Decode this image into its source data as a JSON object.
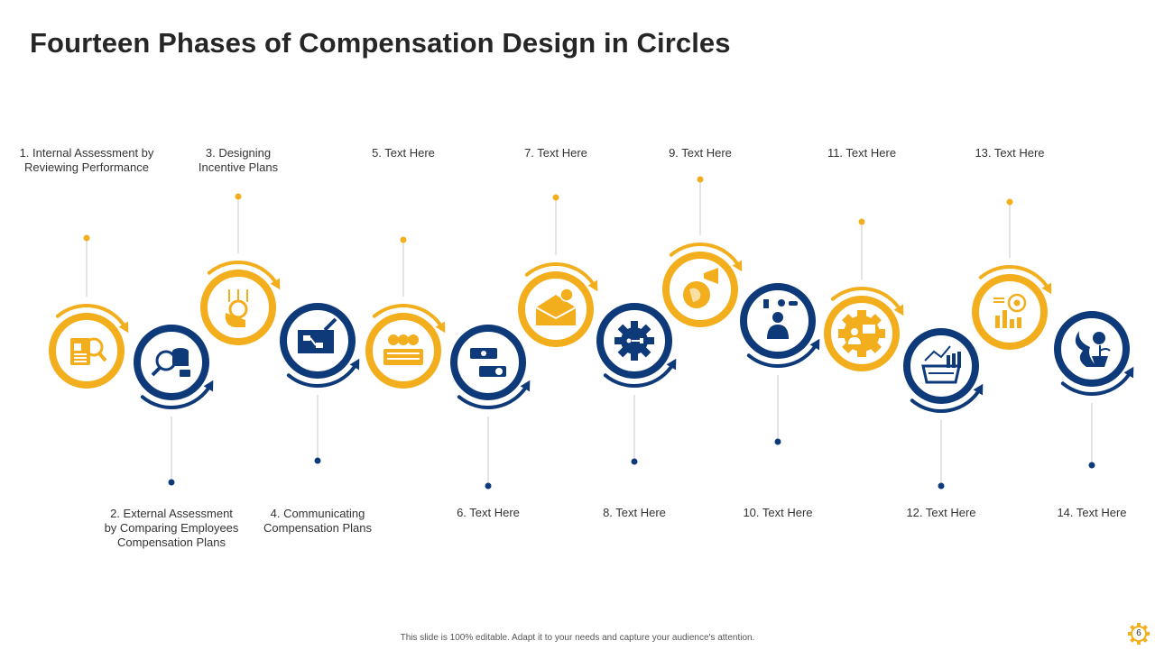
{
  "title": "Fourteen Phases of Compensation Design in Circles",
  "colors": {
    "yellow": "#F2AE1C",
    "blue": "#0E3A7A",
    "text": "#333333"
  },
  "phases": [
    {
      "label": "1. Internal Assessment  by Reviewing  Performance",
      "color": "yellow",
      "icon": "report-search-icon"
    },
    {
      "label": "2. External Assessment by Comparing Employees Compensation Plans",
      "color": "blue",
      "icon": "database-search-icon"
    },
    {
      "label": "3. Designing Incentive Plans",
      "color": "yellow",
      "icon": "hand-coin-growth-icon"
    },
    {
      "label": "4. Communicating Compensation Plans",
      "color": "blue",
      "icon": "flowchart-pencil-icon"
    },
    {
      "label": "5. Text Here",
      "color": "yellow",
      "icon": "money-stack-icon"
    },
    {
      "label": "6. Text Here",
      "color": "blue",
      "icon": "payment-hands-icon"
    },
    {
      "label": "7. Text Here",
      "color": "yellow",
      "icon": "envelope-money-icon"
    },
    {
      "label": "8. Text Here",
      "color": "blue",
      "icon": "gear-icon"
    },
    {
      "label": "9. Text Here",
      "color": "yellow",
      "icon": "globe-megaphone-icon"
    },
    {
      "label": "10. Text Here",
      "color": "blue",
      "icon": "person-ideas-icon"
    },
    {
      "label": "11. Text Here",
      "color": "yellow",
      "icon": "gear-presentation-icon"
    },
    {
      "label": "12. Text Here",
      "color": "blue",
      "icon": "basket-chart-icon"
    },
    {
      "label": "13. Text Here",
      "color": "yellow",
      "icon": "target-chart-icon"
    },
    {
      "label": "14. Text Here",
      "color": "blue",
      "icon": "plant-money-icon"
    }
  ],
  "footer": "This slide is 100% editable. Adapt it to your needs and capture your audience's attention.",
  "page_number": "6"
}
